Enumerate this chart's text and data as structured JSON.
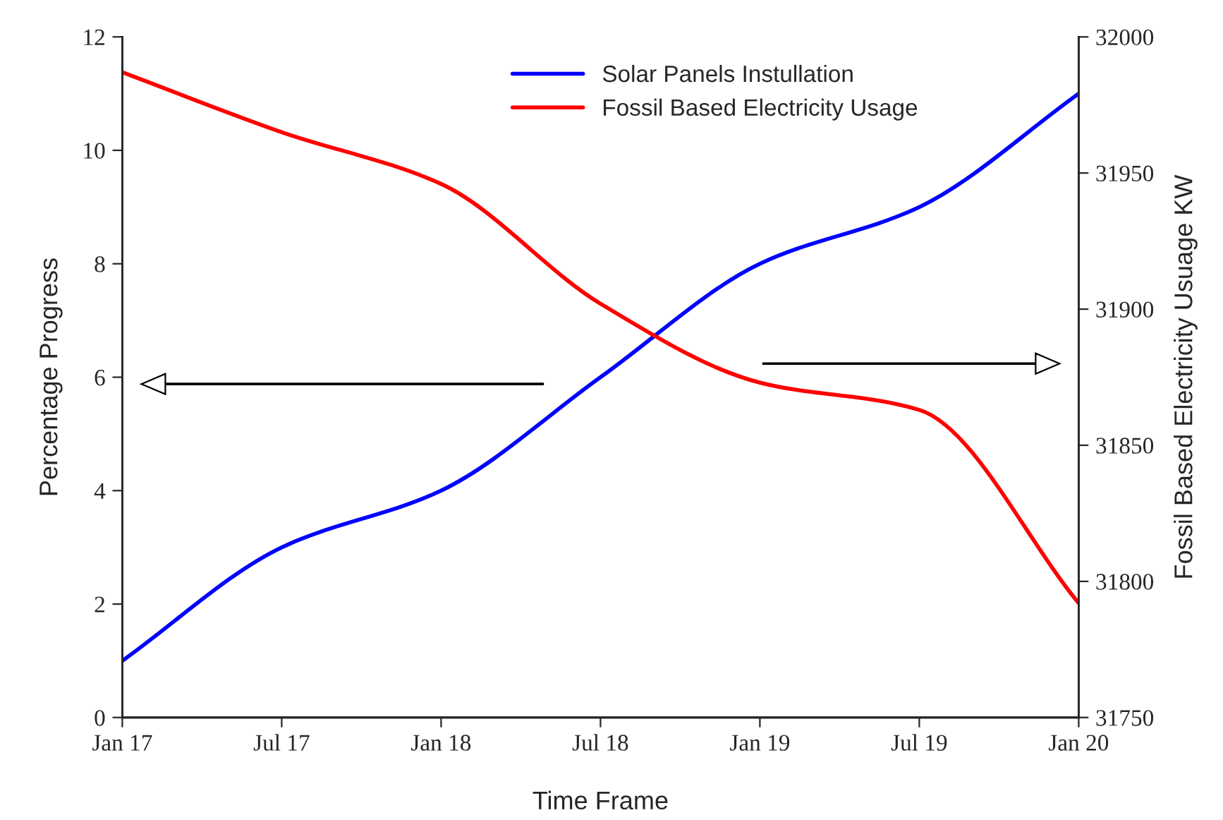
{
  "chart_data": {
    "type": "line",
    "categories": [
      "Jan 17",
      "Jul 17",
      "Jan 18",
      "Jul 18",
      "Jan 19",
      "Jul 19",
      "Jan 20"
    ],
    "xlabel": "Time Frame",
    "ylabel": "Percentage Progress",
    "y2label": "Fossil Based Electricity Usuage KW",
    "ylim": [
      0,
      12
    ],
    "yticks": [
      0,
      2,
      4,
      6,
      8,
      10,
      12
    ],
    "y2lim": [
      31750,
      32000
    ],
    "y2ticks": [
      31750,
      31800,
      31850,
      31900,
      31950,
      32000
    ],
    "series": [
      {
        "name": "Solar Panels Instullation",
        "color": "#0000ff",
        "values": [
          1,
          3,
          4,
          6,
          8,
          9,
          11
        ]
      },
      {
        "name": "Fossil Based Electricity Usage",
        "color": "#ff0000",
        "axis": "y2",
        "values": [
          31987,
          31965,
          31946,
          31902,
          31873,
          31863,
          31792
        ]
      }
    ],
    "legend": "top",
    "grid": false,
    "marker": "none",
    "line_style": "solid"
  }
}
